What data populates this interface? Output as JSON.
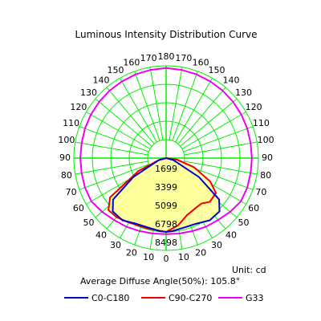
{
  "chart_data": {
    "type": "polar",
    "title": "Luminous Intensity Distribution Curve",
    "unit_label": "Unit: cd",
    "average_angle_label": "Average Diffuse Angle(50%): 105.8°",
    "r_max": 8498,
    "ring_labels": [
      "1699",
      "3399",
      "5099",
      "6798",
      "8498"
    ],
    "ring_values": [
      1699,
      3399,
      5099,
      6798,
      8498
    ],
    "angle_tick_labels_left": [
      "0",
      "10",
      "20",
      "30",
      "40",
      "50",
      "60",
      "70",
      "80",
      "90",
      "100",
      "110",
      "120",
      "130",
      "140",
      "150",
      "160",
      "170",
      "180"
    ],
    "angle_tick_labels_right": [
      "10",
      "20",
      "30",
      "40",
      "50",
      "60",
      "70",
      "80",
      "90",
      "100",
      "110",
      "120",
      "130",
      "140",
      "150",
      "160",
      "170"
    ],
    "grid": true,
    "grid_color": "#00ee00",
    "fill_color": "#ffff99",
    "legend_position": "bottom",
    "series": [
      {
        "name": "C0-C180",
        "color": "#0000cc",
        "points": [
          [
            -90,
            0
          ],
          [
            -75,
            700
          ],
          [
            -60,
            3500
          ],
          [
            -52,
            6200
          ],
          [
            -45,
            6950
          ],
          [
            -35,
            7000
          ],
          [
            -25,
            6650
          ],
          [
            -15,
            6600
          ],
          [
            -5,
            6750
          ],
          [
            0,
            6800
          ],
          [
            5,
            6750
          ],
          [
            15,
            6600
          ],
          [
            25,
            6650
          ],
          [
            35,
            7000
          ],
          [
            45,
            6950
          ],
          [
            52,
            6200
          ],
          [
            60,
            3500
          ],
          [
            75,
            700
          ],
          [
            90,
            0
          ]
        ]
      },
      {
        "name": "C90-C270",
        "color": "#ee0000",
        "points": [
          [
            -90,
            0
          ],
          [
            -75,
            700
          ],
          [
            -65,
            2800
          ],
          [
            -55,
            6300
          ],
          [
            -48,
            7150
          ],
          [
            -40,
            7100
          ],
          [
            -30,
            6850
          ],
          [
            -15,
            6700
          ],
          [
            0,
            6800
          ],
          [
            10,
            6300
          ],
          [
            20,
            5600
          ],
          [
            30,
            5350
          ],
          [
            38,
            5300
          ],
          [
            45,
            5700
          ],
          [
            55,
            5600
          ],
          [
            62,
            4600
          ],
          [
            72,
            2700
          ],
          [
            82,
            1000
          ],
          [
            90,
            0
          ]
        ]
      },
      {
        "name": "G33",
        "color": "#ee00ee",
        "points": [
          [
            -180,
            8300
          ],
          [
            -170,
            8250
          ],
          [
            -160,
            8200
          ],
          [
            -150,
            8150
          ],
          [
            -140,
            8100
          ],
          [
            -130,
            8050
          ],
          [
            -120,
            8000
          ],
          [
            -110,
            7950
          ],
          [
            -100,
            7900
          ],
          [
            -90,
            7900
          ],
          [
            -80,
            7900
          ],
          [
            -70,
            7950
          ],
          [
            -60,
            7950
          ],
          [
            -50,
            7700
          ],
          [
            -40,
            7450
          ],
          [
            -30,
            7300
          ],
          [
            -20,
            7150
          ],
          [
            -10,
            7050
          ],
          [
            0,
            7000
          ],
          [
            10,
            7050
          ],
          [
            20,
            7150
          ],
          [
            30,
            7300
          ],
          [
            40,
            7450
          ],
          [
            50,
            7700
          ],
          [
            60,
            7950
          ],
          [
            70,
            7950
          ],
          [
            80,
            7900
          ],
          [
            90,
            7900
          ],
          [
            100,
            7900
          ],
          [
            110,
            7950
          ],
          [
            120,
            8000
          ],
          [
            130,
            8050
          ],
          [
            140,
            8100
          ],
          [
            150,
            8150
          ],
          [
            160,
            8200
          ],
          [
            170,
            8250
          ],
          [
            180,
            8300
          ]
        ]
      }
    ]
  }
}
